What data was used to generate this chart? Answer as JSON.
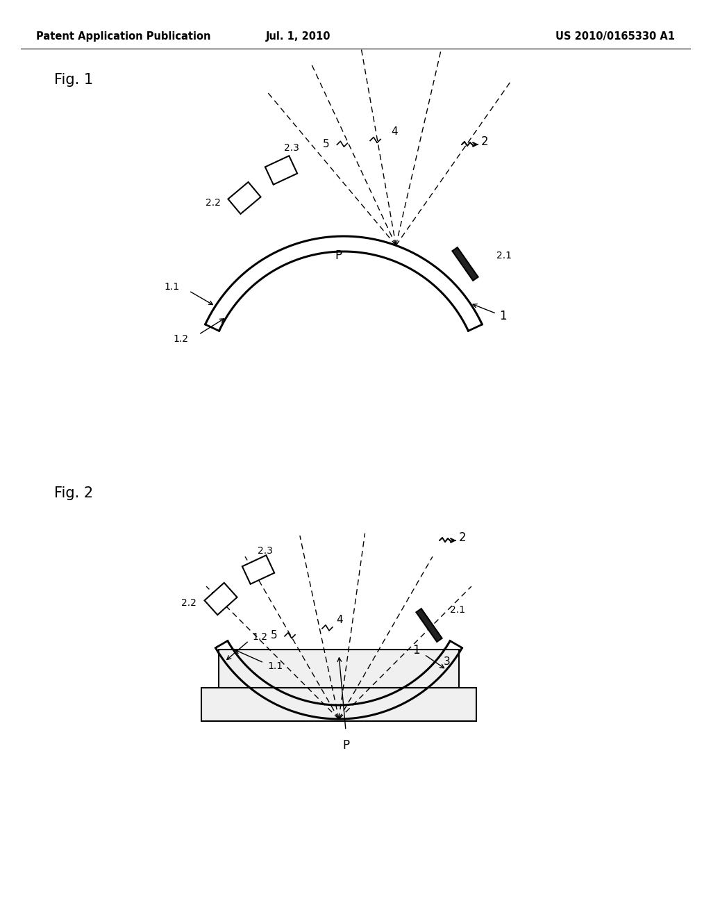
{
  "background_color": "#ffffff",
  "header_left": "Patent Application Publication",
  "header_center": "Jul. 1, 2010",
  "header_right": "US 2010/0165330 A1",
  "fig1_label": "Fig. 1",
  "fig2_label": "Fig. 2",
  "line_color": "#000000",
  "font_size_header": 10.5,
  "font_size_fig": 15
}
